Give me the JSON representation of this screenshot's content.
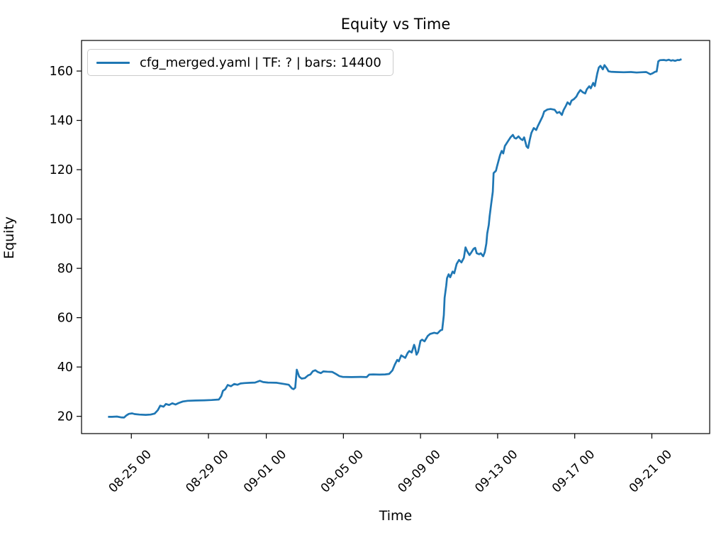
{
  "title": "Equity vs Time",
  "xlabel": "Time",
  "ylabel": "Equity",
  "legend": {
    "label": "cfg_merged.yaml | TF: ? | bars: 14400",
    "line_color": "#1f77b4",
    "position": "upper left"
  },
  "colors": {
    "series": "#1f77b4",
    "axis": "#000000",
    "legend_border": "#cccccc",
    "background": "#ffffff"
  },
  "chart_data": {
    "type": "line",
    "title": "Equity vs Time",
    "xlabel": "Time",
    "ylabel": "Equity",
    "grid": false,
    "legend_position": "upper left",
    "xlim": [
      "08-22 10:00",
      "09-24 00:00"
    ],
    "ylim": [
      13.0,
      172.4
    ],
    "yticks": [
      20,
      40,
      60,
      80,
      100,
      120,
      140,
      160
    ],
    "xticks": [
      {
        "label": "08-25 00",
        "t": "08-25 00:00"
      },
      {
        "label": "08-29 00",
        "t": "08-29 00:00"
      },
      {
        "label": "09-01 00",
        "t": "09-01 00:00"
      },
      {
        "label": "09-05 00",
        "t": "09-05 00:00"
      },
      {
        "label": "09-09 00",
        "t": "09-09 00:00"
      },
      {
        "label": "09-13 00",
        "t": "09-13 00:00"
      },
      {
        "label": "09-17 00",
        "t": "09-17 00:00"
      },
      {
        "label": "09-21 00",
        "t": "09-21 00:00"
      }
    ],
    "series": [
      {
        "name": "cfg_merged.yaml | TF: ? | bars: 14400",
        "color": "#1f77b4",
        "points": [
          [
            "08-23 19:00",
            19.8
          ],
          [
            "08-24 00:00",
            19.8
          ],
          [
            "08-24 06:00",
            19.9
          ],
          [
            "08-24 11:00",
            19.6
          ],
          [
            "08-24 15:00",
            19.5
          ],
          [
            "08-24 18:00",
            20.4
          ],
          [
            "08-24 21:00",
            21.0
          ],
          [
            "08-25 01:00",
            21.2
          ],
          [
            "08-25 04:00",
            20.9
          ],
          [
            "08-25 10:00",
            20.7
          ],
          [
            "08-25 18:00",
            20.6
          ],
          [
            "08-26 00:00",
            20.7
          ],
          [
            "08-26 05:00",
            21.1
          ],
          [
            "08-26 09:00",
            22.5
          ],
          [
            "08-26 12:00",
            24.3
          ],
          [
            "08-26 16:00",
            23.9
          ],
          [
            "08-26 19:00",
            25.0
          ],
          [
            "08-26 23:00",
            24.6
          ],
          [
            "08-27 03:00",
            25.3
          ],
          [
            "08-27 07:00",
            24.8
          ],
          [
            "08-27 11:00",
            25.4
          ],
          [
            "08-27 16:00",
            26.0
          ],
          [
            "08-27 22:00",
            26.3
          ],
          [
            "08-28 08:00",
            26.4
          ],
          [
            "08-28 19:00",
            26.5
          ],
          [
            "08-29 04:00",
            26.6
          ],
          [
            "08-29 13:00",
            26.8
          ],
          [
            "08-29 16:00",
            28.2
          ],
          [
            "08-29 18:00",
            30.3
          ],
          [
            "08-29 21:00",
            31.0
          ],
          [
            "08-30 00:00",
            32.7
          ],
          [
            "08-30 04:00",
            32.2
          ],
          [
            "08-30 08:00",
            33.1
          ],
          [
            "08-30 12:00",
            32.8
          ],
          [
            "08-30 16:00",
            33.3
          ],
          [
            "08-30 21:00",
            33.5
          ],
          [
            "08-31 04:00",
            33.6
          ],
          [
            "08-31 10:00",
            33.7
          ],
          [
            "08-31 16:00",
            34.4
          ],
          [
            "08-31 20:00",
            33.9
          ],
          [
            "09-01 02:00",
            33.7
          ],
          [
            "09-01 13:00",
            33.6
          ],
          [
            "09-01 22:00",
            33.1
          ],
          [
            "09-02 04:00",
            32.8
          ],
          [
            "09-02 08:00",
            31.3
          ],
          [
            "09-02 10:00",
            31.0
          ],
          [
            "09-02 12:00",
            31.6
          ],
          [
            "09-02 14:00",
            38.9
          ],
          [
            "09-02 17:00",
            36.1
          ],
          [
            "09-02 20:00",
            35.3
          ],
          [
            "09-03 00:00",
            35.5
          ],
          [
            "09-03 04:00",
            36.6
          ],
          [
            "09-03 07:00",
            37.0
          ],
          [
            "09-03 10:00",
            38.3
          ],
          [
            "09-03 13:00",
            38.7
          ],
          [
            "09-03 16:00",
            38.0
          ],
          [
            "09-03 20:00",
            37.5
          ],
          [
            "09-03 23:00",
            38.2
          ],
          [
            "09-04 04:00",
            38.1
          ],
          [
            "09-04 10:00",
            38.0
          ],
          [
            "09-04 15:00",
            37.1
          ],
          [
            "09-04 19:00",
            36.3
          ],
          [
            "09-04 23:00",
            36.0
          ],
          [
            "09-05 10:00",
            35.9
          ],
          [
            "09-05 22:00",
            36.0
          ],
          [
            "09-06 05:00",
            35.9
          ],
          [
            "09-06 08:00",
            36.9
          ],
          [
            "09-06 13:00",
            37.0
          ],
          [
            "09-06 21:00",
            36.9
          ],
          [
            "09-07 04:00",
            37.0
          ],
          [
            "09-07 09:00",
            37.2
          ],
          [
            "09-07 13:00",
            38.6
          ],
          [
            "09-07 16:00",
            41.0
          ],
          [
            "09-07 19:00",
            42.9
          ],
          [
            "09-07 21:00",
            42.3
          ],
          [
            "09-08 00:00",
            44.7
          ],
          [
            "09-08 03:00",
            44.1
          ],
          [
            "09-08 05:00",
            43.7
          ],
          [
            "09-08 08:00",
            45.7
          ],
          [
            "09-08 10:00",
            46.5
          ],
          [
            "09-08 13:00",
            45.9
          ],
          [
            "09-08 16:00",
            49.0
          ],
          [
            "09-08 17:00",
            48.1
          ],
          [
            "09-08 19:00",
            45.0
          ],
          [
            "09-08 21:00",
            46.1
          ],
          [
            "09-09 00:00",
            50.6
          ],
          [
            "09-09 02:00",
            51.1
          ],
          [
            "09-09 05:00",
            50.4
          ],
          [
            "09-09 09:00",
            52.6
          ],
          [
            "09-09 12:00",
            53.4
          ],
          [
            "09-09 17:00",
            53.9
          ],
          [
            "09-09 21:00",
            53.6
          ],
          [
            "09-10 01:00",
            54.9
          ],
          [
            "09-10 03:00",
            55.1
          ],
          [
            "09-10 05:00",
            61.0
          ],
          [
            "09-10 06:00",
            68.0
          ],
          [
            "09-10 08:00",
            73.0
          ],
          [
            "09-10 09:00",
            76.0
          ],
          [
            "09-10 11:00",
            77.6
          ],
          [
            "09-10 13:00",
            76.4
          ],
          [
            "09-10 16:00",
            78.7
          ],
          [
            "09-10 18:00",
            78.0
          ],
          [
            "09-10 21:00",
            81.8
          ],
          [
            "09-11 00:00",
            83.4
          ],
          [
            "09-11 03:00",
            82.4
          ],
          [
            "09-11 06:00",
            84.3
          ],
          [
            "09-11 08:00",
            88.5
          ],
          [
            "09-11 10:00",
            87.0
          ],
          [
            "09-11 13:00",
            85.4
          ],
          [
            "09-11 15:00",
            86.3
          ],
          [
            "09-11 18:00",
            87.9
          ],
          [
            "09-11 20:00",
            88.3
          ],
          [
            "09-11 22:00",
            86.1
          ],
          [
            "09-12 01:00",
            85.7
          ],
          [
            "09-12 03:00",
            86.1
          ],
          [
            "09-12 06:00",
            84.9
          ],
          [
            "09-12 08:00",
            86.6
          ],
          [
            "09-12 10:00",
            90.1
          ],
          [
            "09-12 11:00",
            94.1
          ],
          [
            "09-12 13:00",
            97.6
          ],
          [
            "09-12 14:00",
            101.1
          ],
          [
            "09-12 16:00",
            106.1
          ],
          [
            "09-12 18:00",
            111.1
          ],
          [
            "09-12 19:00",
            118.6
          ],
          [
            "09-12 22:00",
            119.6
          ],
          [
            "09-12 23:00",
            121.1
          ],
          [
            "09-13 03:00",
            125.9
          ],
          [
            "09-13 05:00",
            127.6
          ],
          [
            "09-13 07:00",
            126.6
          ],
          [
            "09-13 09:00",
            129.6
          ],
          [
            "09-13 11:00",
            130.6
          ],
          [
            "09-13 13:00",
            131.6
          ],
          [
            "09-13 16:00",
            133.1
          ],
          [
            "09-13 19:00",
            134.1
          ],
          [
            "09-13 21:00",
            132.9
          ],
          [
            "09-13 23:00",
            132.6
          ],
          [
            "09-14 02:00",
            133.5
          ],
          [
            "09-14 05:00",
            132.4
          ],
          [
            "09-14 07:00",
            132.0
          ],
          [
            "09-14 09:00",
            133.1
          ],
          [
            "09-14 12:00",
            129.4
          ],
          [
            "09-14 14:00",
            128.8
          ],
          [
            "09-14 16:00",
            132.1
          ],
          [
            "09-14 18:00",
            134.9
          ],
          [
            "09-14 21:00",
            136.9
          ],
          [
            "09-15 00:00",
            136.1
          ],
          [
            "09-15 02:00",
            137.6
          ],
          [
            "09-15 05:00",
            139.6
          ],
          [
            "09-15 08:00",
            141.6
          ],
          [
            "09-15 10:00",
            143.6
          ],
          [
            "09-15 14:00",
            144.4
          ],
          [
            "09-15 18:00",
            144.6
          ],
          [
            "09-15 23:00",
            144.3
          ],
          [
            "09-16 02:00",
            143.0
          ],
          [
            "09-16 05:00",
            143.4
          ],
          [
            "09-16 08:00",
            142.2
          ],
          [
            "09-16 10:00",
            144.1
          ],
          [
            "09-16 13:00",
            145.9
          ],
          [
            "09-16 15:00",
            147.3
          ],
          [
            "09-16 18:00",
            146.4
          ],
          [
            "09-16 20:00",
            148.0
          ],
          [
            "09-16 23:00",
            148.6
          ],
          [
            "09-17 02:00",
            149.6
          ],
          [
            "09-17 04:00",
            150.9
          ],
          [
            "09-17 07:00",
            152.3
          ],
          [
            "09-17 10:00",
            151.4
          ],
          [
            "09-17 13:00",
            150.9
          ],
          [
            "09-17 15:00",
            152.6
          ],
          [
            "09-17 18:00",
            153.8
          ],
          [
            "09-17 20:00",
            153.0
          ],
          [
            "09-17 23:00",
            155.2
          ],
          [
            "09-18 01:00",
            153.9
          ],
          [
            "09-18 04:00",
            159.0
          ],
          [
            "09-18 06:00",
            161.4
          ],
          [
            "09-18 08:00",
            162.1
          ],
          [
            "09-18 11:00",
            160.7
          ],
          [
            "09-18 13:00",
            162.4
          ],
          [
            "09-18 16:00",
            161.1
          ],
          [
            "09-18 18:00",
            159.9
          ],
          [
            "09-18 21:00",
            159.7
          ],
          [
            "09-19 04:00",
            159.6
          ],
          [
            "09-19 13:00",
            159.5
          ],
          [
            "09-19 22:00",
            159.6
          ],
          [
            "09-20 05:00",
            159.4
          ],
          [
            "09-20 11:00",
            159.5
          ],
          [
            "09-20 17:00",
            159.6
          ],
          [
            "09-20 22:00",
            158.7
          ],
          [
            "09-21 01:00",
            159.1
          ],
          [
            "09-21 04:00",
            159.7
          ],
          [
            "09-21 06:00",
            159.8
          ],
          [
            "09-21 08:00",
            163.9
          ],
          [
            "09-21 10:00",
            164.4
          ],
          [
            "09-21 15:00",
            164.5
          ],
          [
            "09-21 18:00",
            164.3
          ],
          [
            "09-21 21:00",
            164.6
          ],
          [
            "09-22 00:00",
            164.2
          ],
          [
            "09-22 02:00",
            164.4
          ],
          [
            "09-22 05:00",
            164.1
          ],
          [
            "09-22 08:00",
            164.5
          ],
          [
            "09-22 10:00",
            164.4
          ],
          [
            "09-22 13:00",
            164.8
          ]
        ]
      }
    ]
  }
}
